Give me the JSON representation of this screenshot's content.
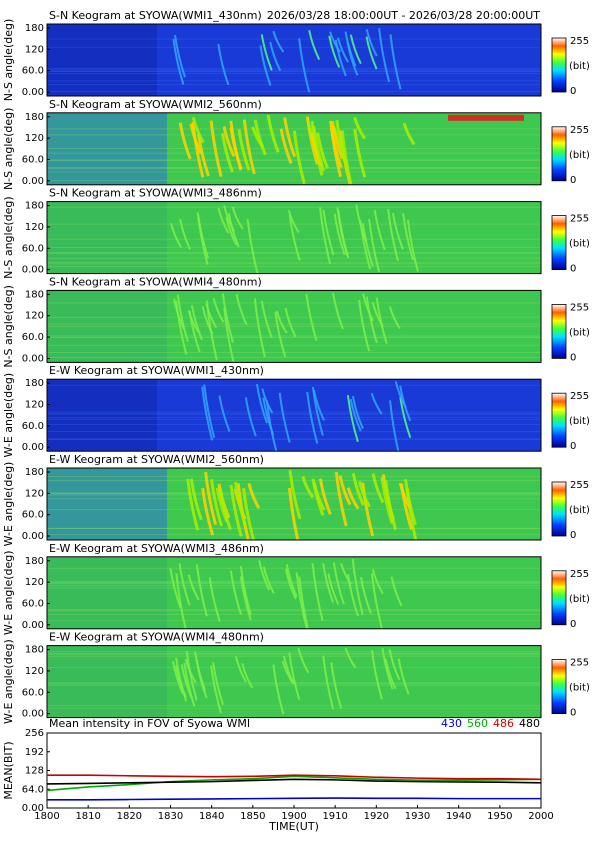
{
  "header": {
    "time_range": "2026/03/28 18:00:00UT - 2026/03/28 20:00:00UT"
  },
  "colorbar": {
    "max_label": "255",
    "unit_label": "(bit)",
    "min_label": "0"
  },
  "colors": {
    "c430": "#0000cc",
    "c560": "#00aa00",
    "c486": "#cc0000",
    "c480": "#000000"
  },
  "keograms": [
    {
      "title": "S-N Keogram at SYOWA(WMI1_430nm)",
      "ylabel": "N-S angle(deg)",
      "yticks": [
        "180",
        "120",
        "60.0",
        "0.00"
      ],
      "base": "blue",
      "arcs": "sparse"
    },
    {
      "title": "S-N Keogram at SYOWA(WMI2_560nm)",
      "ylabel": "N-S angle(deg)",
      "yticks": [
        "180",
        "120",
        "60.0",
        "0.00"
      ],
      "base": "green",
      "arcs": "strong"
    },
    {
      "title": "S-N Keogram at SYOWA(WMI3_486nm)",
      "ylabel": "N-S angle(deg)",
      "yticks": [
        "180",
        "120",
        "60.0",
        "0.00"
      ],
      "base": "green",
      "arcs": "faint"
    },
    {
      "title": "S-N Keogram at SYOWA(WMI4_480nm)",
      "ylabel": "N-S angle(deg)",
      "yticks": [
        "180",
        "120",
        "60.0",
        "0.00"
      ],
      "base": "green",
      "arcs": "faint"
    },
    {
      "title": "E-W Keogram at SYOWA(WMI1_430nm)",
      "ylabel": "W-E angle(deg)",
      "yticks": [
        "180",
        "120",
        "60.0",
        "0.00"
      ],
      "base": "blue",
      "arcs": "sparse"
    },
    {
      "title": "E-W Keogram at SYOWA(WMI2_560nm)",
      "ylabel": "W-E angle(deg)",
      "yticks": [
        "180",
        "120",
        "60.0",
        "0.00"
      ],
      "base": "green",
      "arcs": "strong"
    },
    {
      "title": "E-W Keogram at SYOWA(WMI3_486nm)",
      "ylabel": "W-E angle(deg)",
      "yticks": [
        "180",
        "120",
        "60.0",
        "0.00"
      ],
      "base": "green",
      "arcs": "faint"
    },
    {
      "title": "E-W Keogram at SYOWA(WMI4_480nm)",
      "ylabel": "W-E angle(deg)",
      "yticks": [
        "180",
        "120",
        "60.0",
        "0.00"
      ],
      "base": "green",
      "arcs": "faint"
    }
  ],
  "chart_data": {
    "type": "line",
    "title": "Mean intensity in FOV of Syowa WMI",
    "xlabel": "TIME(UT)",
    "ylabel": "MEAN(BIT)",
    "xticks": [
      "1800",
      "1810",
      "1820",
      "1830",
      "1840",
      "1850",
      "1900",
      "1910",
      "1920",
      "1930",
      "1940",
      "1950",
      "2000"
    ],
    "yticks": [
      "256",
      "192",
      "128",
      "64.0",
      "0.00"
    ],
    "ylim": [
      0,
      256
    ],
    "x": [
      0,
      10,
      20,
      30,
      40,
      50,
      60,
      70,
      80,
      90,
      100,
      110,
      120
    ],
    "series": [
      {
        "name": "430",
        "color": "#0000cc",
        "values": [
          28,
          28,
          29,
          30,
          31,
          32,
          33,
          34,
          33,
          33,
          32,
          32,
          32
        ]
      },
      {
        "name": "560",
        "color": "#00aa00",
        "values": [
          60,
          72,
          80,
          90,
          96,
          100,
          108,
          103,
          98,
          95,
          95,
          96,
          98
        ]
      },
      {
        "name": "486",
        "color": "#cc0000",
        "values": [
          112,
          112,
          110,
          108,
          107,
          108,
          112,
          110,
          105,
          102,
          100,
          100,
          98
        ]
      },
      {
        "name": "480",
        "color": "#000000",
        "values": [
          82,
          84,
          86,
          88,
          90,
          94,
          98,
          96,
          92,
          90,
          89,
          88,
          86
        ]
      }
    ],
    "legend": "top-right"
  }
}
